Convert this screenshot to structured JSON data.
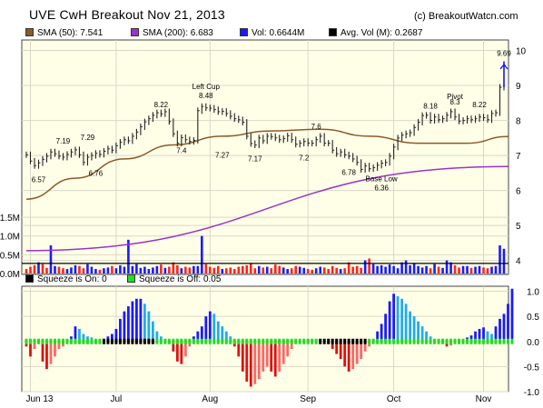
{
  "header": {
    "title": "UVE CwH Breakout  Nov 21, 2013",
    "copyright": "(c) BreakoutWatcn.com"
  },
  "price_legend": [
    {
      "label": "SMA (50): 7.541",
      "color": "#8b5a2b"
    },
    {
      "label": "SMA (200): 6.683",
      "color": "#9933cc"
    },
    {
      "label": "Vol: 0.6644M",
      "color": "#1a1aff"
    },
    {
      "label": "Avg. Vol (M): 0.2687",
      "color": "#000000"
    }
  ],
  "squeeze_legend": [
    {
      "label": "Squeeze is On: 0",
      "color": "#000000"
    },
    {
      "label": "Squeeze is Off: 0.05",
      "color": "#22dd22"
    }
  ],
  "chart_data": [
    {
      "type": "ohlc",
      "title": "UVE CwH Breakout  Nov 21, 2013",
      "x_ticks": [
        "Jun 13",
        "Jul",
        "Aug",
        "Sep",
        "Oct",
        "Nov"
      ],
      "y_ticks": [
        4,
        5,
        6,
        7,
        8,
        9,
        10
      ],
      "ylim": [
        3.6,
        10.3
      ],
      "grid": true,
      "close": [
        7.02,
        6.84,
        6.71,
        6.79,
        6.89,
        6.98,
        7.1,
        7.05,
        6.98,
        6.95,
        7.03,
        7.1,
        7.16,
        7.02,
        6.8,
        6.95,
        7.0,
        7.06,
        7.03,
        7.12,
        7.19,
        7.15,
        7.28,
        7.38,
        7.45,
        7.42,
        7.55,
        7.67,
        7.82,
        7.96,
        8.05,
        8.15,
        8.22,
        8.19,
        8.25,
        7.97,
        7.62,
        7.35,
        7.51,
        7.45,
        7.4,
        7.43,
        8.28,
        8.4,
        8.36,
        8.35,
        8.31,
        8.25,
        8.26,
        8.2,
        8.12,
        8.05,
        8.02,
        7.95,
        7.55,
        7.34,
        7.3,
        7.5,
        7.42,
        7.55,
        7.54,
        7.5,
        7.45,
        7.48,
        7.56,
        7.45,
        7.32,
        7.35,
        7.4,
        7.35,
        7.35,
        7.45,
        7.55,
        7.35,
        7.35,
        7.15,
        7.05,
        7.1,
        7.02,
        6.98,
        6.9,
        6.8,
        6.6,
        6.7,
        6.62,
        6.65,
        6.72,
        6.78,
        6.8,
        6.98,
        7.24,
        7.5,
        7.58,
        7.62,
        7.65,
        7.8,
        7.95,
        8.14,
        8.15,
        8.0,
        8.1,
        8.02,
        8.05,
        8.15,
        8.25,
        8.1,
        7.98,
        8.0,
        8.05,
        8.02,
        8.05,
        8.1,
        8.08,
        8.02,
        8.2,
        8.22,
        8.95,
        9.57
      ],
      "price_annotations": [
        {
          "x": 3,
          "y": 6.57,
          "label": "6.57"
        },
        {
          "x": 9,
          "y": 7.19,
          "label": "7.19"
        },
        {
          "x": 15,
          "y": 7.29,
          "label": "7.29"
        },
        {
          "x": 17,
          "y": 6.76,
          "label": "6.76"
        },
        {
          "x": 33,
          "y": 8.22,
          "label": "8.22"
        },
        {
          "x": 38,
          "y": 7.4,
          "label": "7.4"
        },
        {
          "x": 44,
          "y": 8.48,
          "label": "Left Cup"
        },
        {
          "x": 44,
          "y": 8.48,
          "label": "8.48"
        },
        {
          "x": 48,
          "y": 7.27,
          "label": "7.27"
        },
        {
          "x": 56,
          "y": 7.17,
          "label": "7.17"
        },
        {
          "x": 68,
          "y": 7.2,
          "label": "7.2"
        },
        {
          "x": 71,
          "y": 7.6,
          "label": "7.6"
        },
        {
          "x": 79,
          "y": 6.78,
          "label": "6.78"
        },
        {
          "x": 87,
          "y": 6.36,
          "label": "Base Low"
        },
        {
          "x": 87,
          "y": 6.36,
          "label": "6.36"
        },
        {
          "x": 99,
          "y": 8.18,
          "label": "8.18"
        },
        {
          "x": 105,
          "y": 8.3,
          "label": "Pivot"
        },
        {
          "x": 105,
          "y": 8.3,
          "label": "8.3"
        },
        {
          "x": 111,
          "y": 8.22,
          "label": "8.22"
        },
        {
          "x": 117,
          "y": 9.69,
          "label": "9.69"
        }
      ],
      "sma50": {
        "x": [
          0,
          12,
          24,
          36,
          48,
          60,
          72,
          84,
          96,
          108,
          118
        ],
        "y": [
          5.75,
          6.35,
          6.9,
          7.3,
          7.55,
          7.7,
          7.75,
          7.55,
          7.35,
          7.35,
          7.541
        ]
      },
      "sma200": {
        "x": [
          0,
          118
        ],
        "y": [
          4.28,
          6.683
        ]
      }
    },
    {
      "type": "bar",
      "ylabel": "Volume",
      "y_ticks": [
        "0.0M",
        "0.5M",
        "1.0M",
        "1.5M"
      ],
      "ylim": [
        0,
        1.55
      ],
      "avg_volume": 0.2687,
      "values": [
        0.12,
        0.18,
        0.22,
        0.3,
        0.25,
        0.15,
        0.75,
        0.2,
        0.18,
        0.14,
        0.12,
        0.16,
        0.22,
        0.2,
        0.14,
        0.25,
        0.18,
        0.12,
        0.1,
        0.14,
        0.16,
        0.2,
        0.14,
        0.22,
        0.18,
        0.9,
        0.2,
        0.25,
        0.15,
        0.18,
        0.12,
        0.16,
        0.2,
        0.24,
        0.15,
        0.18,
        0.3,
        0.22,
        0.14,
        0.18,
        0.16,
        0.2,
        0.2,
        1.0,
        0.25,
        0.18,
        0.15,
        0.2,
        0.12,
        0.14,
        0.16,
        0.12,
        0.18,
        0.2,
        0.22,
        0.28,
        0.14,
        0.2,
        0.16,
        0.18,
        0.14,
        0.24,
        0.2,
        0.16,
        0.12,
        0.14,
        0.2,
        0.18,
        0.15,
        0.12,
        0.1,
        0.14,
        0.18,
        0.16,
        0.12,
        0.2,
        0.15,
        0.12,
        0.14,
        0.3,
        0.18,
        0.2,
        0.15,
        0.35,
        0.4,
        0.25,
        0.2,
        0.22,
        0.18,
        0.24,
        0.2,
        0.14,
        0.3,
        0.35,
        0.22,
        0.28,
        0.2,
        0.16,
        0.2,
        0.14,
        0.25,
        0.18,
        0.15,
        0.35,
        0.3,
        0.22,
        0.16,
        0.2,
        0.2,
        0.15,
        0.18,
        0.2,
        0.16,
        0.14,
        0.18,
        0.2,
        0.75,
        0.66
      ],
      "up": [
        0,
        0,
        0,
        1,
        0,
        0,
        1,
        1,
        0,
        0,
        1,
        1,
        1,
        0,
        0,
        1,
        1,
        1,
        0,
        1,
        1,
        0,
        1,
        1,
        1,
        1,
        1,
        1,
        1,
        1,
        1,
        1,
        1,
        0,
        1,
        0,
        0,
        0,
        1,
        0,
        0,
        1,
        1,
        1,
        0,
        0,
        0,
        0,
        1,
        0,
        0,
        0,
        0,
        0,
        0,
        0,
        0,
        1,
        0,
        1,
        0,
        0,
        0,
        1,
        1,
        0,
        0,
        1,
        1,
        0,
        0,
        1,
        1,
        0,
        0,
        0,
        0,
        1,
        0,
        0,
        0,
        0,
        0,
        1,
        0,
        1,
        1,
        1,
        1,
        1,
        1,
        1,
        1,
        1,
        1,
        1,
        1,
        1,
        1,
        0,
        1,
        0,
        1,
        1,
        1,
        0,
        0,
        1,
        1,
        0,
        1,
        1,
        0,
        0,
        1,
        1,
        1,
        1
      ]
    },
    {
      "type": "bar",
      "ylabel": "Squeeze",
      "x_ticks": [
        "Jun 13",
        "Jul",
        "Aug",
        "Sep",
        "Oct",
        "Nov"
      ],
      "y_ticks": [
        "-1.0",
        "-0.5",
        "0.0",
        "0.5",
        "1.0"
      ],
      "ylim": [
        -1.0,
        1.1
      ],
      "values": [
        -0.1,
        -0.3,
        -0.15,
        -0.05,
        -0.4,
        -0.55,
        -0.45,
        -0.3,
        -0.15,
        -0.1,
        0.05,
        0.1,
        0.3,
        0.25,
        0.15,
        0.1,
        0.08,
        0.05,
        0.03,
        0.05,
        0.1,
        0.15,
        0.25,
        0.45,
        0.6,
        0.7,
        0.8,
        0.85,
        0.85,
        0.75,
        0.6,
        0.4,
        0.2,
        0.1,
        0.05,
        -0.05,
        -0.2,
        -0.4,
        -0.45,
        -0.3,
        -0.1,
        0.1,
        0.2,
        0.3,
        0.5,
        0.6,
        0.55,
        0.4,
        0.3,
        0.2,
        0.1,
        -0.1,
        -0.3,
        -0.6,
        -0.8,
        -0.9,
        -0.85,
        -0.75,
        -0.6,
        -0.5,
        -0.6,
        -0.7,
        -0.6,
        -0.45,
        -0.3,
        -0.15,
        -0.05,
        -0.02,
        0.02,
        0.04,
        0.05,
        0.04,
        0.03,
        0.02,
        -0.05,
        -0.15,
        -0.25,
        -0.35,
        -0.5,
        -0.6,
        -0.55,
        -0.45,
        -0.35,
        -0.2,
        -0.1,
        0.05,
        0.2,
        0.35,
        0.55,
        0.8,
        0.95,
        0.9,
        0.85,
        0.75,
        0.6,
        0.5,
        0.4,
        0.3,
        0.2,
        0.1,
        0.05,
        0.02,
        -0.05,
        -0.1,
        -0.08,
        -0.05,
        0.02,
        0.05,
        0.08,
        0.12,
        0.2,
        0.25,
        0.28,
        0.2,
        0.15,
        0.3,
        0.45,
        0.55,
        0.75,
        1.05
      ],
      "squeeze_on": [
        0,
        0,
        0,
        0,
        0,
        0,
        0,
        0,
        0,
        0,
        0,
        0,
        0,
        0,
        0,
        0,
        0,
        0,
        0,
        0,
        0,
        0,
        0,
        0,
        0,
        0,
        0,
        0,
        0,
        0,
        0,
        0,
        0,
        0,
        0,
        0,
        0,
        0,
        0,
        0,
        0,
        0,
        0,
        0,
        0,
        0,
        0,
        0,
        0,
        0,
        0,
        0,
        0,
        0,
        0,
        0,
        0,
        0,
        0,
        0,
        0,
        0,
        0,
        0,
        0,
        0,
        0,
        0,
        0,
        0,
        0,
        0,
        0,
        0,
        0,
        0,
        0,
        0,
        0,
        0,
        0,
        0,
        0,
        0,
        0,
        0,
        0,
        0,
        0,
        0,
        0,
        0,
        0,
        0,
        0,
        0,
        0,
        0,
        0,
        0,
        0,
        0,
        0,
        0,
        0,
        0,
        0,
        0,
        0,
        0,
        0,
        0,
        0,
        0,
        0,
        0,
        0,
        0
      ]
    }
  ],
  "colors": {
    "plot_bg": "#ffffe8",
    "up_bar": "#1a1aff",
    "down_bar": "#ff2222",
    "mom_pos_rising": "#1a1aff",
    "mom_pos_falling": "#22aaee",
    "mom_neg_falling": "#dd1111",
    "mom_neg_rising": "#ff6666",
    "squeeze_off": "#22dd22",
    "squeeze_on": "#000000"
  }
}
